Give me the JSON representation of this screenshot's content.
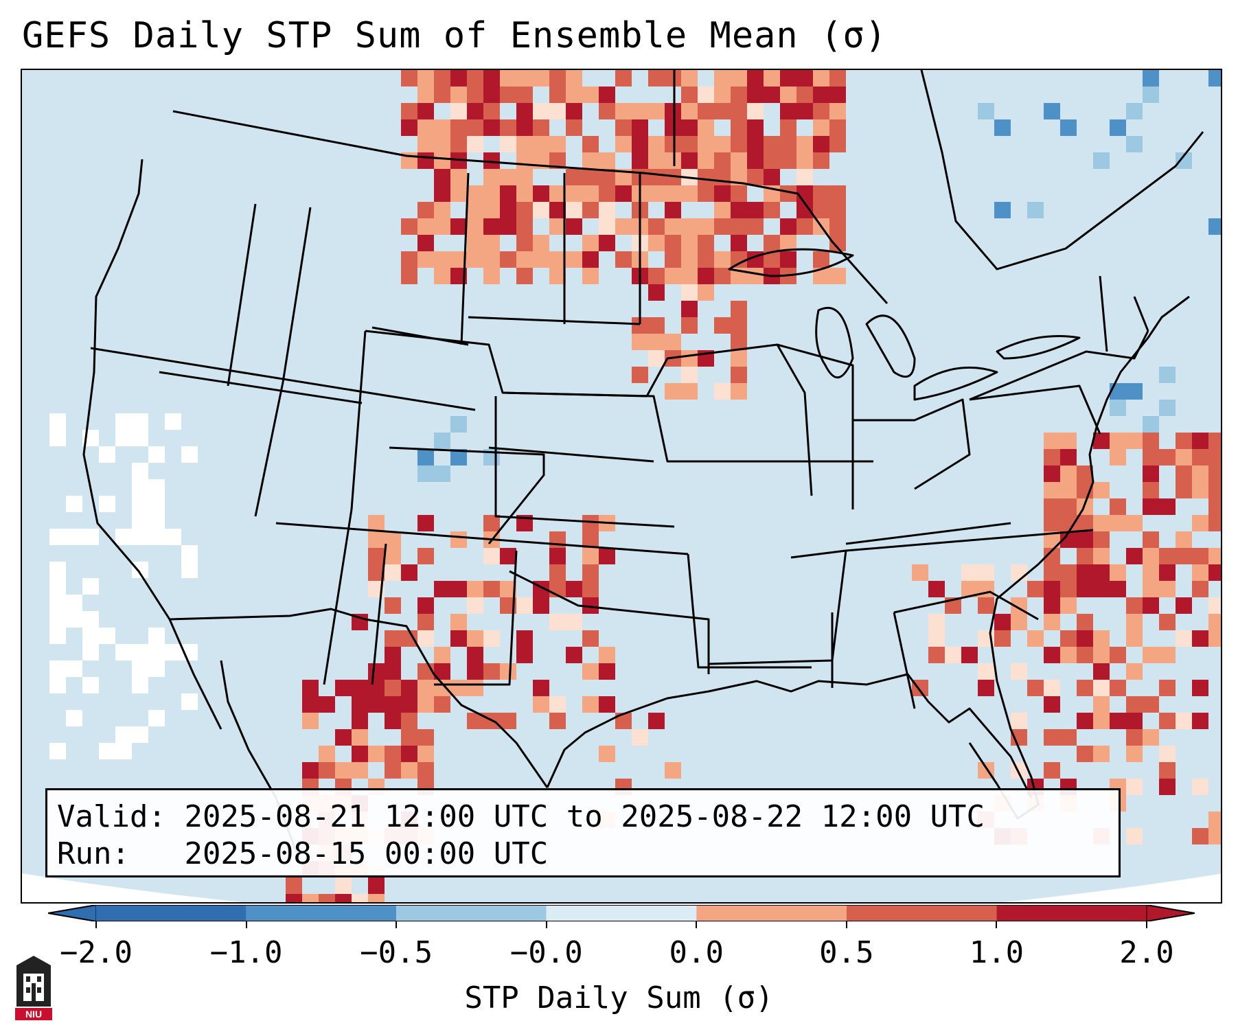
{
  "title": "GEFS Daily STP Sum of Ensemble Mean (σ)",
  "info": {
    "valid_label": "Valid:",
    "valid_range": "2025-08-21 12:00 UTC to 2025-08-22 12:00 UTC",
    "run_label": "Run:",
    "run_time": "2025-08-15 00:00 UTC"
  },
  "colorbar": {
    "label": "STP Daily Sum (σ)",
    "ticks": [
      "−2.0",
      "−1.0",
      "−0.5",
      "−0.0",
      "0.0",
      "0.5",
      "1.0",
      "2.0"
    ],
    "colors": [
      "#2f6fb0",
      "#4e91c6",
      "#9cc8e2",
      "#dcecf5",
      "#fce0d2",
      "#f4a582",
      "#d6604d",
      "#b2182b"
    ],
    "extend": "both"
  },
  "map": {
    "region": "Contiguous United States",
    "background_color": "#d1e5f0",
    "extreme_positive_color": "#b2182b"
  },
  "logo": {
    "text": "NIU"
  }
}
